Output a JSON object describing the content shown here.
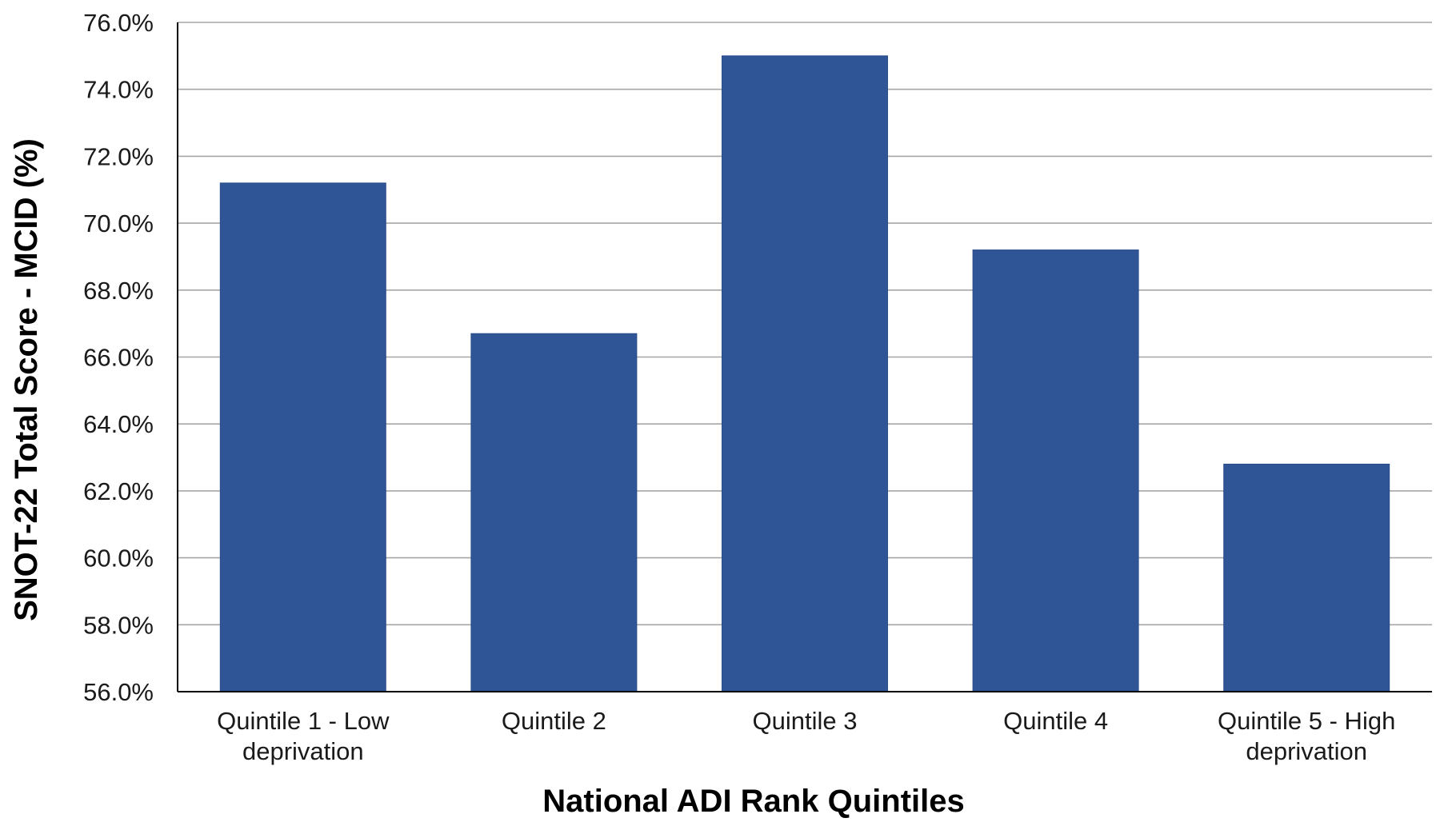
{
  "chart_data": {
    "type": "bar",
    "categories": [
      [
        "Quintile 1 - Low",
        "deprivation"
      ],
      [
        "Quintile 2"
      ],
      [
        "Quintile 3"
      ],
      [
        "Quintile 4"
      ],
      [
        "Quintile 5 - High",
        "deprivation"
      ]
    ],
    "values": [
      71.2,
      66.7,
      75.0,
      69.2,
      62.8
    ],
    "title": "",
    "xlabel": "National ADI Rank Quintiles",
    "ylabel": "SNOT-22 Total Score - MCID (%)",
    "ylim": [
      56,
      76
    ],
    "ytick_step": 2,
    "ytick_labels": [
      "56.0%",
      "58.0%",
      "60.0%",
      "62.0%",
      "64.0%",
      "66.0%",
      "68.0%",
      "70.0%",
      "72.0%",
      "74.0%",
      "76.0%"
    ],
    "grid": true,
    "legend": "none",
    "bar_color": "#2f5597",
    "grid_color": "#a6a6a6",
    "axis_color": "#000000"
  }
}
